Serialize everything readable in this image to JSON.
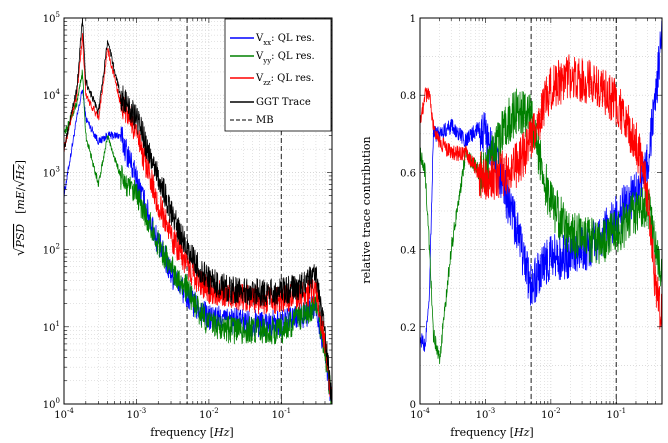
{
  "chart_data": [
    {
      "type": "line",
      "xscale": "log",
      "yscale": "log",
      "xlim": [
        0.0001,
        0.5
      ],
      "ylim": [
        1,
        100000
      ],
      "xlabel": "frequency [Hz]",
      "xlabel_parts": {
        "text": "frequency",
        "unit": "Hz"
      },
      "ylabel": "√PSD  [mE/√Hz]",
      "ylabel_parts": {
        "sqrt": "√",
        "quantity": "PSD",
        "unit_num": "mE",
        "unit_den": "Hz"
      },
      "x_tick_labels": [
        {
          "base": "10",
          "exp": "-4",
          "value": 0.0001
        },
        {
          "base": "10",
          "exp": "-3",
          "value": 0.001
        },
        {
          "base": "10",
          "exp": "-2",
          "value": 0.01
        },
        {
          "base": "10",
          "exp": "-1",
          "value": 0.1
        }
      ],
      "y_tick_labels": [
        {
          "base": "10",
          "exp": "0",
          "value": 1
        },
        {
          "base": "10",
          "exp": "1",
          "value": 10
        },
        {
          "base": "10",
          "exp": "2",
          "value": 100
        },
        {
          "base": "10",
          "exp": "3",
          "value": 1000
        },
        {
          "base": "10",
          "exp": "4",
          "value": 10000
        },
        {
          "base": "10",
          "exp": "5",
          "value": 100000
        }
      ],
      "grid": true,
      "legend_position": "top-right",
      "mb_lines_x": [
        0.005,
        0.1
      ],
      "series": [
        {
          "name": "Vxx: QL res.",
          "name_parts": {
            "base": "V",
            "sub": "xx",
            "rest": ": QL res."
          },
          "color": "#0000ff",
          "x": [
            0.0001,
            0.00015,
            0.00018,
            0.0002,
            0.0003,
            0.0004,
            0.0006,
            0.0008,
            0.001,
            0.002,
            0.003,
            0.005,
            0.007,
            0.01,
            0.02,
            0.05,
            0.1,
            0.2,
            0.3,
            0.4,
            0.5
          ],
          "y": [
            500,
            5000,
            12000,
            5000,
            2500,
            3000,
            3000,
            1500,
            800,
            120,
            50,
            25,
            17,
            13,
            12,
            11,
            11,
            14,
            18,
            5,
            1
          ]
        },
        {
          "name": "Vyy: QL res.",
          "name_parts": {
            "base": "V",
            "sub": "yy",
            "rest": ": QL res."
          },
          "color": "#008000",
          "x": [
            0.0001,
            0.00015,
            0.00018,
            0.0002,
            0.0003,
            0.0004,
            0.0006,
            0.0008,
            0.001,
            0.002,
            0.003,
            0.005,
            0.007,
            0.01,
            0.02,
            0.05,
            0.1,
            0.2,
            0.3,
            0.4,
            0.5
          ],
          "y": [
            3000,
            8000,
            20000,
            3000,
            700,
            3000,
            900,
            600,
            500,
            120,
            60,
            30,
            17,
            11,
            9,
            9,
            9,
            14,
            20,
            5,
            1
          ]
        },
        {
          "name": "Vzz: QL res.",
          "name_parts": {
            "base": "V",
            "sub": "zz",
            "rest": ": QL res."
          },
          "color": "#ff0000",
          "x": [
            0.0001,
            0.00015,
            0.00018,
            0.0002,
            0.0003,
            0.0004,
            0.0006,
            0.0008,
            0.001,
            0.002,
            0.003,
            0.005,
            0.007,
            0.01,
            0.02,
            0.05,
            0.1,
            0.2,
            0.3,
            0.4,
            0.5
          ],
          "y": [
            2000,
            10000,
            60000,
            10000,
            5000,
            40000,
            8000,
            5000,
            3000,
            400,
            150,
            60,
            40,
            30,
            25,
            22,
            22,
            26,
            30,
            6,
            1
          ]
        },
        {
          "name": "GGT Trace",
          "color": "#000000",
          "x": [
            0.0001,
            0.00015,
            0.00018,
            0.0002,
            0.0003,
            0.0004,
            0.0006,
            0.0008,
            0.001,
            0.002,
            0.003,
            0.005,
            0.007,
            0.01,
            0.02,
            0.05,
            0.1,
            0.2,
            0.3,
            0.4,
            0.5
          ],
          "y": [
            2000,
            12000,
            100000,
            15000,
            6000,
            50000,
            10000,
            7000,
            5000,
            900,
            300,
            100,
            60,
            40,
            30,
            28,
            28,
            35,
            45,
            8,
            1
          ]
        },
        {
          "name": "MB",
          "color": "#333333",
          "dashed": true,
          "x": [],
          "y": []
        }
      ]
    },
    {
      "type": "line",
      "xscale": "log",
      "xlim": [
        0.0001,
        0.5
      ],
      "ylim": [
        0,
        1
      ],
      "xlabel": "frequency [Hz]",
      "xlabel_parts": {
        "text": "frequency",
        "unit": "Hz"
      },
      "ylabel": "relative trace contribution",
      "x_tick_labels": [
        {
          "base": "10",
          "exp": "-4",
          "value": 0.0001
        },
        {
          "base": "10",
          "exp": "-3",
          "value": 0.001
        },
        {
          "base": "10",
          "exp": "-2",
          "value": 0.01
        },
        {
          "base": "10",
          "exp": "-1",
          "value": 0.1
        }
      ],
      "y_tick_labels": [
        "0",
        "0.2",
        "0.4",
        "0.6",
        "0.8",
        "1"
      ],
      "y_tick_values": [
        0,
        0.2,
        0.4,
        0.6,
        0.8,
        1
      ],
      "grid": true,
      "mb_lines_x": [
        0.005,
        0.1
      ],
      "series": [
        {
          "color": "#0000ff",
          "x": [
            0.0001,
            0.00012,
            0.00014,
            0.00016,
            0.0002,
            0.0003,
            0.0005,
            0.0008,
            0.001,
            0.002,
            0.003,
            0.005,
            0.007,
            0.01,
            0.02,
            0.05,
            0.1,
            0.2,
            0.3,
            0.4,
            0.5
          ],
          "y": [
            0.17,
            0.15,
            0.3,
            0.7,
            0.7,
            0.72,
            0.68,
            0.72,
            0.7,
            0.55,
            0.45,
            0.3,
            0.35,
            0.38,
            0.38,
            0.42,
            0.48,
            0.55,
            0.62,
            0.8,
            0.95
          ]
        },
        {
          "color": "#008000",
          "x": [
            0.0001,
            0.00012,
            0.00014,
            0.00016,
            0.0002,
            0.0003,
            0.0005,
            0.0008,
            0.001,
            0.002,
            0.003,
            0.005,
            0.007,
            0.01,
            0.02,
            0.05,
            0.1,
            0.2,
            0.3,
            0.4,
            0.5
          ],
          "y": [
            0.65,
            0.6,
            0.4,
            0.18,
            0.12,
            0.4,
            0.65,
            0.6,
            0.6,
            0.72,
            0.76,
            0.74,
            0.62,
            0.52,
            0.44,
            0.42,
            0.44,
            0.5,
            0.52,
            0.4,
            0.35
          ]
        },
        {
          "color": "#ff0000",
          "x": [
            0.0001,
            0.00012,
            0.00014,
            0.00016,
            0.0002,
            0.0003,
            0.0005,
            0.0008,
            0.001,
            0.002,
            0.003,
            0.005,
            0.007,
            0.01,
            0.02,
            0.05,
            0.1,
            0.2,
            0.3,
            0.4,
            0.5
          ],
          "y": [
            0.72,
            0.8,
            0.8,
            0.72,
            0.68,
            0.65,
            0.65,
            0.6,
            0.58,
            0.6,
            0.62,
            0.68,
            0.75,
            0.82,
            0.85,
            0.83,
            0.78,
            0.68,
            0.55,
            0.3,
            0.22
          ]
        }
      ]
    }
  ]
}
